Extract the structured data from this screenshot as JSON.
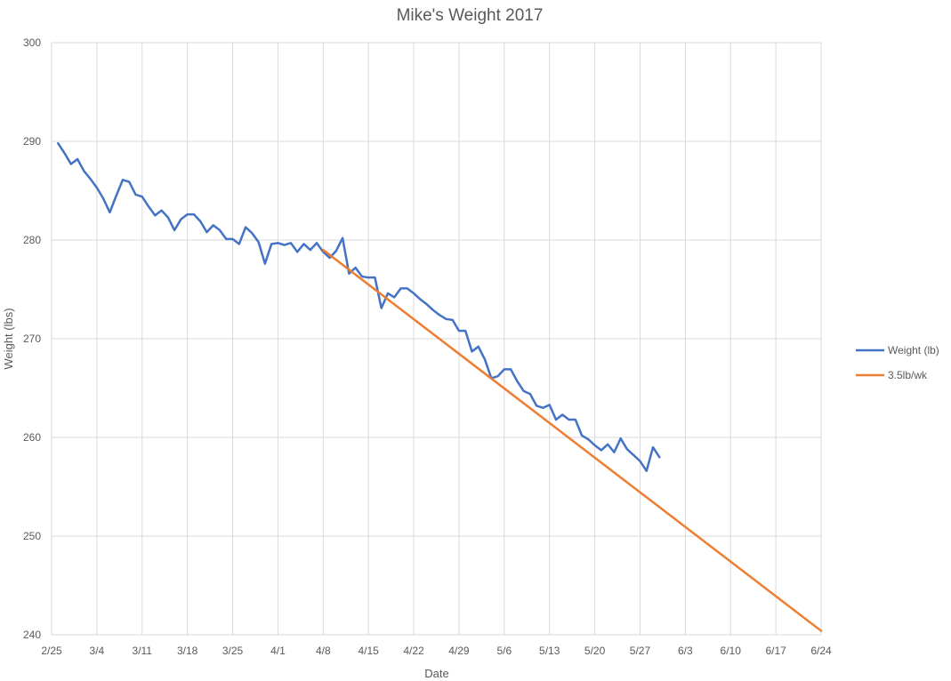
{
  "chart_data": {
    "type": "line",
    "title": "Mike's Weight 2017",
    "xlabel": "Date",
    "ylabel": "Weight (lbs)",
    "ylim": [
      240,
      300
    ],
    "y_ticks": [
      240,
      250,
      260,
      270,
      280,
      290,
      300
    ],
    "x_tick_labels": [
      "2/25",
      "3/4",
      "3/11",
      "3/18",
      "3/25",
      "4/1",
      "4/8",
      "4/15",
      "4/22",
      "4/29",
      "5/6",
      "5/13",
      "5/20",
      "5/27",
      "6/3",
      "6/10",
      "6/17",
      "6/24"
    ],
    "grid": true,
    "legend_position": "right",
    "series": [
      {
        "name": "Weight (lb)",
        "color": "#4472c4",
        "points": [
          [
            "2017-02-26",
            289.8
          ],
          [
            "2017-02-27",
            288.8
          ],
          [
            "2017-02-28",
            287.7
          ],
          [
            "2017-03-01",
            288.2
          ],
          [
            "2017-03-02",
            287.0
          ],
          [
            "2017-03-03",
            286.2
          ],
          [
            "2017-03-04",
            285.3
          ],
          [
            "2017-03-05",
            284.2
          ],
          [
            "2017-03-06",
            282.8
          ],
          [
            "2017-03-07",
            284.5
          ],
          [
            "2017-03-08",
            286.1
          ],
          [
            "2017-03-09",
            285.9
          ],
          [
            "2017-03-10",
            284.6
          ],
          [
            "2017-03-11",
            284.4
          ],
          [
            "2017-03-12",
            283.4
          ],
          [
            "2017-03-13",
            282.5
          ],
          [
            "2017-03-14",
            283.0
          ],
          [
            "2017-03-15",
            282.3
          ],
          [
            "2017-03-16",
            281.0
          ],
          [
            "2017-03-17",
            282.1
          ],
          [
            "2017-03-18",
            282.6
          ],
          [
            "2017-03-19",
            282.6
          ],
          [
            "2017-03-20",
            281.9
          ],
          [
            "2017-03-21",
            280.8
          ],
          [
            "2017-03-22",
            281.5
          ],
          [
            "2017-03-23",
            281.0
          ],
          [
            "2017-03-24",
            280.1
          ],
          [
            "2017-03-25",
            280.1
          ],
          [
            "2017-03-26",
            279.6
          ],
          [
            "2017-03-27",
            281.3
          ],
          [
            "2017-03-28",
            280.7
          ],
          [
            "2017-03-29",
            279.8
          ],
          [
            "2017-03-30",
            277.6
          ],
          [
            "2017-03-31",
            279.6
          ],
          [
            "2017-04-01",
            279.7
          ],
          [
            "2017-04-02",
            279.5
          ],
          [
            "2017-04-03",
            279.7
          ],
          [
            "2017-04-04",
            278.8
          ],
          [
            "2017-04-05",
            279.6
          ],
          [
            "2017-04-06",
            279.0
          ],
          [
            "2017-04-07",
            279.7
          ],
          [
            "2017-04-08",
            278.8
          ],
          [
            "2017-04-09",
            278.2
          ],
          [
            "2017-04-10",
            278.9
          ],
          [
            "2017-04-11",
            280.2
          ],
          [
            "2017-04-12",
            276.6
          ],
          [
            "2017-04-13",
            277.2
          ],
          [
            "2017-04-14",
            276.3
          ],
          [
            "2017-04-15",
            276.2
          ],
          [
            "2017-04-16",
            276.2
          ],
          [
            "2017-04-17",
            273.1
          ],
          [
            "2017-04-18",
            274.6
          ],
          [
            "2017-04-19",
            274.2
          ],
          [
            "2017-04-20",
            275.1
          ],
          [
            "2017-04-21",
            275.1
          ],
          [
            "2017-04-22",
            274.6
          ],
          [
            "2017-04-23",
            274.0
          ],
          [
            "2017-04-24",
            273.5
          ],
          [
            "2017-04-25",
            272.9
          ],
          [
            "2017-04-26",
            272.4
          ],
          [
            "2017-04-27",
            272.0
          ],
          [
            "2017-04-28",
            271.9
          ],
          [
            "2017-04-29",
            270.8
          ],
          [
            "2017-04-30",
            270.8
          ],
          [
            "2017-05-01",
            268.7
          ],
          [
            "2017-05-02",
            269.2
          ],
          [
            "2017-05-03",
            267.9
          ],
          [
            "2017-05-04",
            266.0
          ],
          [
            "2017-05-05",
            266.2
          ],
          [
            "2017-05-06",
            266.9
          ],
          [
            "2017-05-07",
            266.9
          ],
          [
            "2017-05-08",
            265.7
          ],
          [
            "2017-05-09",
            264.7
          ],
          [
            "2017-05-10",
            264.4
          ],
          [
            "2017-05-11",
            263.2
          ],
          [
            "2017-05-12",
            263.0
          ],
          [
            "2017-05-13",
            263.3
          ],
          [
            "2017-05-14",
            261.8
          ],
          [
            "2017-05-15",
            262.3
          ],
          [
            "2017-05-16",
            261.8
          ],
          [
            "2017-05-17",
            261.8
          ],
          [
            "2017-05-18",
            260.2
          ],
          [
            "2017-05-19",
            259.8
          ],
          [
            "2017-05-20",
            259.2
          ],
          [
            "2017-05-21",
            258.7
          ],
          [
            "2017-05-22",
            259.3
          ],
          [
            "2017-05-23",
            258.5
          ],
          [
            "2017-05-24",
            259.9
          ],
          [
            "2017-05-25",
            258.8
          ],
          [
            "2017-05-26",
            258.2
          ],
          [
            "2017-05-27",
            257.6
          ],
          [
            "2017-05-28",
            256.6
          ],
          [
            "2017-05-29",
            259.0
          ],
          [
            "2017-05-30",
            258.0
          ]
        ]
      },
      {
        "name": "3.5lb/wk",
        "color": "#ed7d31",
        "points": [
          [
            "2017-04-08",
            279.0
          ],
          [
            "2017-06-24",
            240.4
          ]
        ]
      }
    ]
  }
}
